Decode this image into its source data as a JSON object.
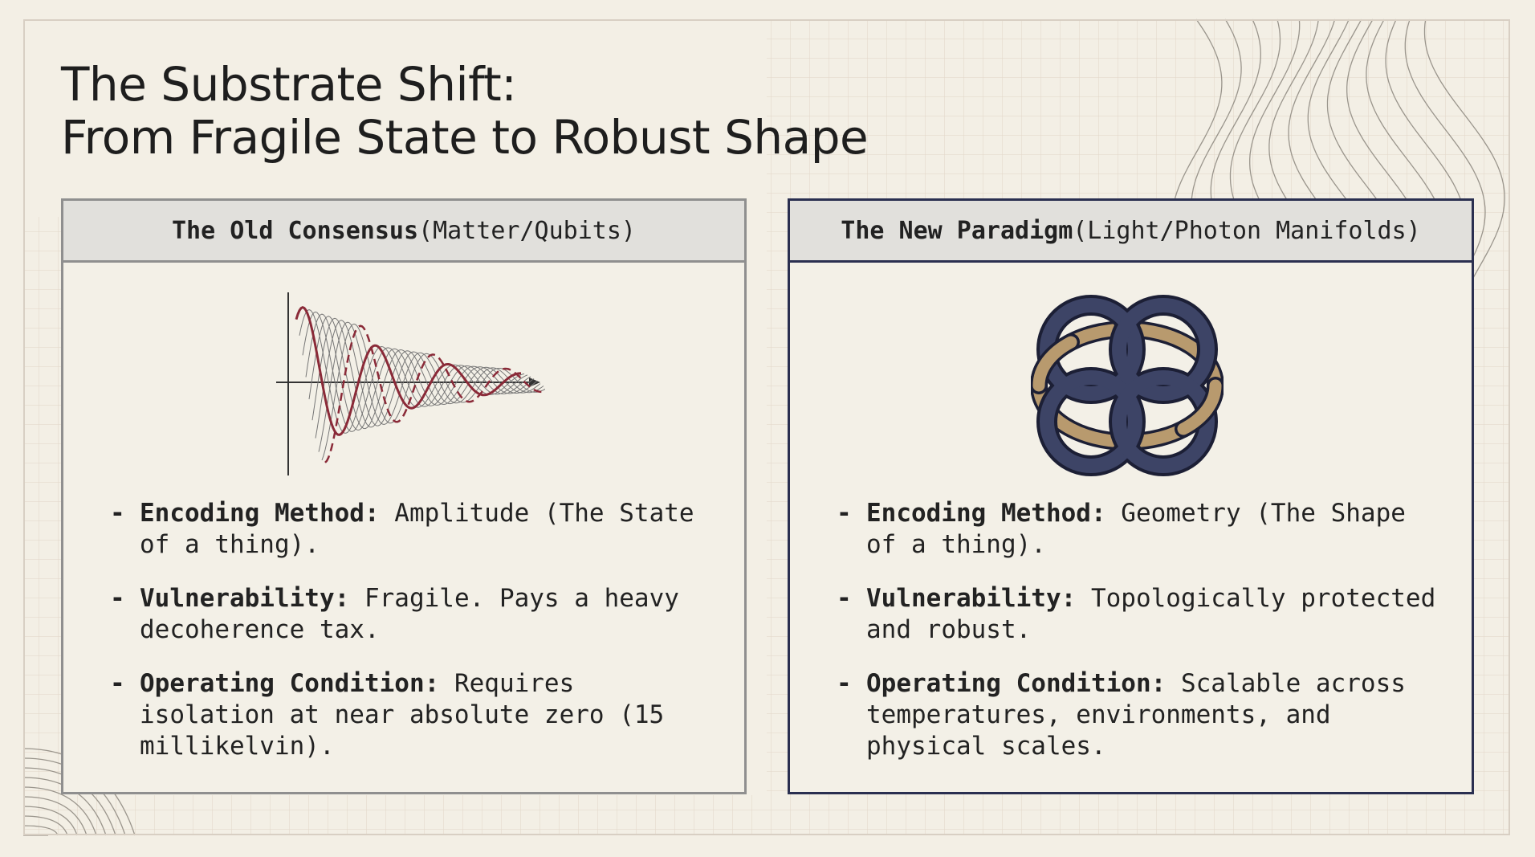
{
  "header": {
    "title_lines": [
      "The Substrate Shift:",
      "From Fragile State to Robust Shape"
    ]
  },
  "panels": [
    {
      "heading_bold": "The Old Consensus",
      "heading_rest": "(Matter/Qubits)",
      "bullets": [
        {
          "label": "Encoding Method:",
          "text": "Amplitude (The State of a thing)."
        },
        {
          "label": "Vulnerability:",
          "text": "Fragile. Pays a heavy decoherence tax."
        },
        {
          "label": "Operating Condition:",
          "text": "Requires isolation at near absolute zero (15 millikelvin)."
        }
      ]
    },
    {
      "heading_bold": "The New Paradigm",
      "heading_rest": "(Light/Photon Manifolds)",
      "bullets": [
        {
          "label": "Encoding Method:",
          "text": "Geometry (The Shape of a thing)."
        },
        {
          "label": "Vulnerability:",
          "text": "Topologically protected and robust."
        },
        {
          "label": "Operating Condition:",
          "text": "Scalable across temperatures, environments, and physical scales."
        }
      ]
    }
  ]
}
